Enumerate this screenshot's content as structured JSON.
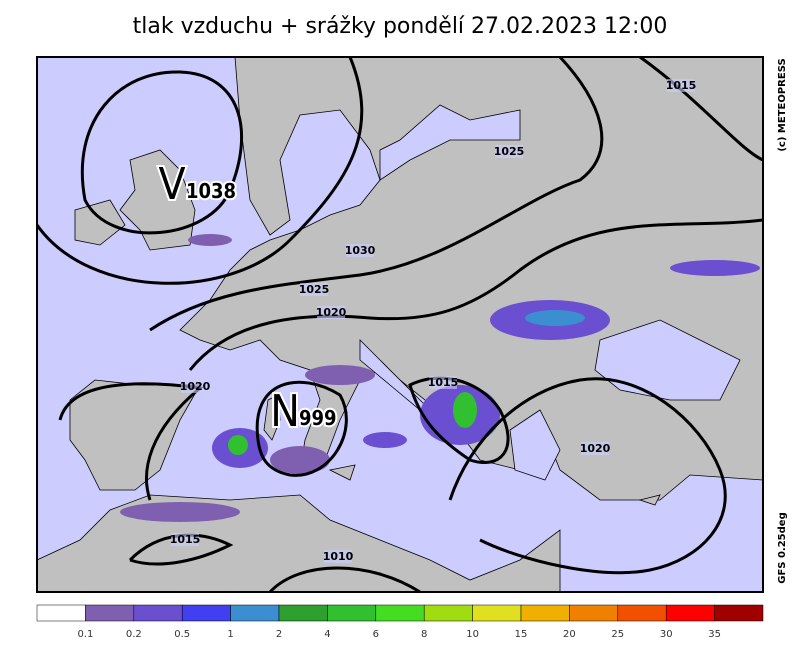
{
  "title": "tlak vzduchu + srážky pondělí 27.02.2023 12:00",
  "credit": "(c) METEOPRESS",
  "model": "GFS 0.25deg",
  "centers": [
    {
      "letter": "V",
      "value": "1038"
    },
    {
      "letter": "N",
      "value": "999"
    }
  ],
  "isobar_labels": [
    "1015",
    "1025",
    "1030",
    "1025",
    "1020",
    "1020",
    "1015",
    "1020",
    "1015",
    "1010"
  ],
  "legend": {
    "colors": [
      "#ffffff",
      "#7f5fb0",
      "#6a4fd0",
      "#4040f0",
      "#3b8fd0",
      "#2ea02e",
      "#30c030",
      "#44dd22",
      "#a0dd10",
      "#e0e020",
      "#f0b000",
      "#f08000",
      "#f05000",
      "#ff0000",
      "#a00000"
    ],
    "labels": [
      0.1,
      0.2,
      0.5,
      1,
      2,
      4,
      6,
      8,
      10,
      15,
      20,
      25,
      30,
      35
    ]
  }
}
